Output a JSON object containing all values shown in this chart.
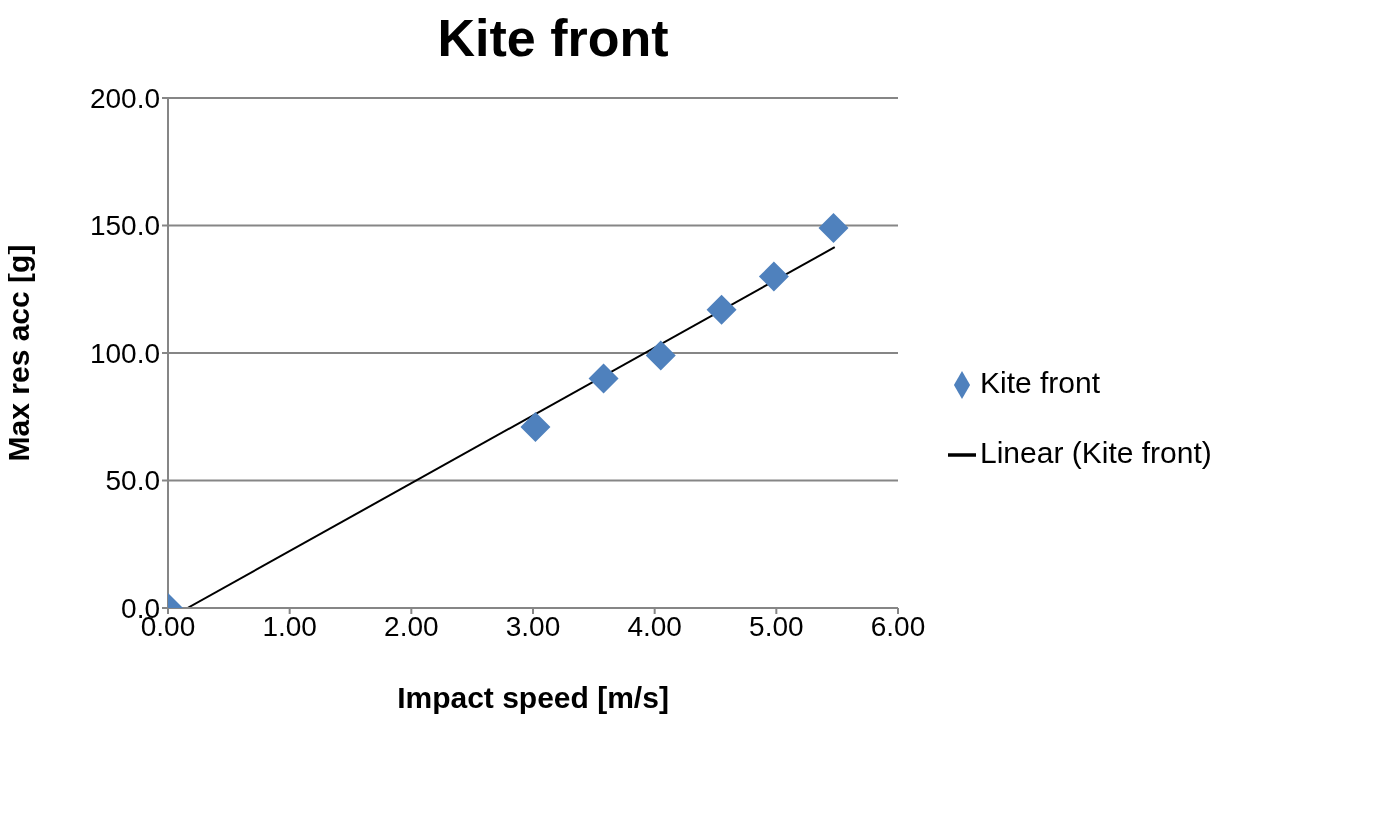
{
  "chart_data": {
    "type": "scatter",
    "title": "Kite front",
    "xlabel": "Impact speed [m/s]",
    "ylabel": "Max res acc [g]",
    "xlim": [
      0,
      6
    ],
    "xticks": [
      {
        "value": 0,
        "label": "0.00"
      },
      {
        "value": 1,
        "label": "1.00"
      },
      {
        "value": 2,
        "label": "2.00"
      },
      {
        "value": 3,
        "label": "3.00"
      },
      {
        "value": 4,
        "label": "4.00"
      },
      {
        "value": 5,
        "label": "5.00"
      },
      {
        "value": 6,
        "label": "6.00"
      }
    ],
    "ylim": [
      0,
      200
    ],
    "yticks": [
      {
        "value": 0,
        "label": "0.0"
      },
      {
        "value": 50,
        "label": "50.0"
      },
      {
        "value": 100,
        "label": "100.0"
      },
      {
        "value": 150,
        "label": "150.0"
      },
      {
        "value": 200,
        "label": "200.0"
      }
    ],
    "grid": "y",
    "legend": "right",
    "series": [
      {
        "name": "Kite front",
        "marker": "diamond",
        "color": "#4f81bd",
        "x": [
          0,
          3.02,
          3.58,
          4.05,
          4.55,
          4.98,
          5.47
        ],
        "values": [
          0,
          71,
          90,
          99,
          117,
          130,
          149
        ]
      },
      {
        "name": "Linear (Kite front)",
        "type": "line",
        "marker": "none",
        "color": "#000000",
        "x": [
          0.16,
          5.48
        ],
        "values": [
          0,
          141.5
        ]
      }
    ]
  }
}
